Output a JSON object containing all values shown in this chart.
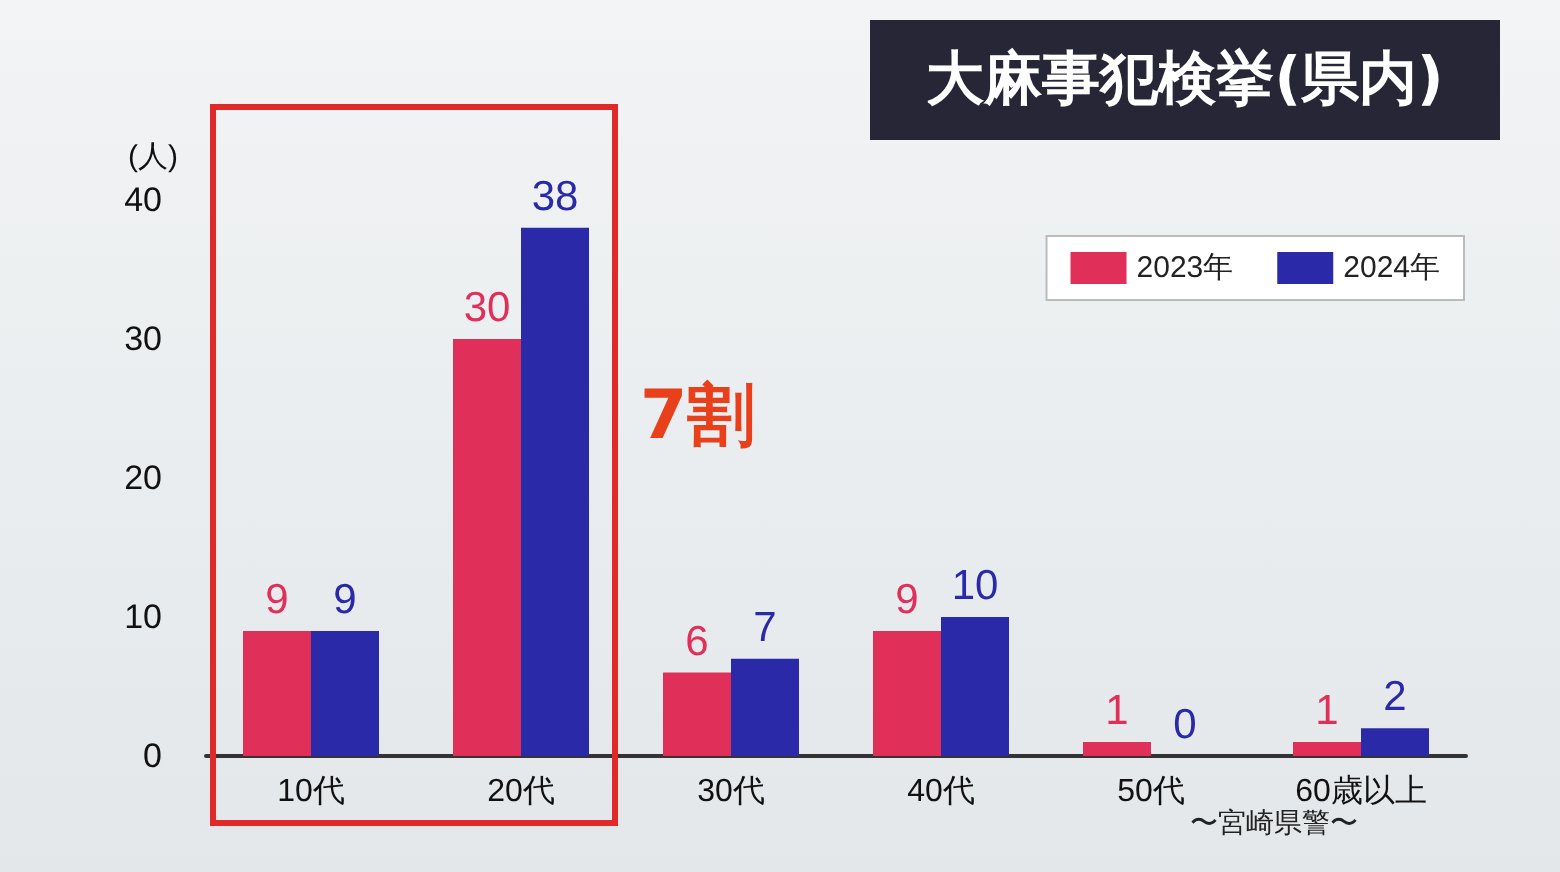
{
  "chart_data": {
    "type": "bar",
    "title": "大麻事犯検挙(県内)",
    "ylabel": "(人)",
    "categories": [
      "10代",
      "20代",
      "30代",
      "40代",
      "50代",
      "60歳以上"
    ],
    "series": [
      {
        "name": "2023年",
        "color": "#e0305a",
        "values": [
          9,
          30,
          6,
          9,
          1,
          1
        ]
      },
      {
        "name": "2024年",
        "color": "#2a2aa8",
        "values": [
          9,
          38,
          7,
          10,
          0,
          2
        ]
      }
    ],
    "ylim": [
      0,
      40
    ],
    "yticks": [
      0,
      10,
      20,
      30,
      40
    ],
    "grid": false,
    "legend": "top right",
    "data_labels": true,
    "annotations": [
      "7割",
      "〜宮崎県警〜"
    ]
  }
}
